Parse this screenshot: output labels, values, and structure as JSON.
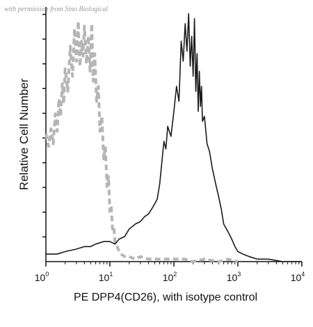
{
  "watermark": "with permission from Sino Biological",
  "chart_data": {
    "type": "line",
    "title": "",
    "xlabel": "PE DPP4(CD26), with isotype control",
    "ylabel": "Relative Cell Number",
    "x_scale": "log",
    "xlim": [
      1,
      10000
    ],
    "ylim": [
      0,
      100
    ],
    "x_ticks": [
      {
        "base": "10",
        "exp": "0",
        "value": 1
      },
      {
        "base": "10",
        "exp": "1",
        "value": 10
      },
      {
        "base": "10",
        "exp": "2",
        "value": 100
      },
      {
        "base": "10",
        "exp": "3",
        "value": 1000
      },
      {
        "base": "10",
        "exp": "4",
        "value": 10000
      }
    ],
    "y_ticks_labeled": false,
    "grid": false,
    "series": [
      {
        "role": "isotype control",
        "color": "#b5b5b5",
        "style": "dashed",
        "x": [
          1.0,
          1.1,
          1.2,
          1.3,
          1.4,
          1.5,
          1.6,
          1.7,
          1.8,
          1.9,
          2.0,
          2.2,
          2.4,
          2.6,
          2.8,
          3.0,
          3.2,
          3.4,
          3.6,
          3.8,
          4.0,
          4.3,
          4.6,
          4.9,
          5.2,
          5.5,
          5.8,
          6.2,
          6.6,
          7.0,
          7.5,
          8.0,
          8.5,
          9.0,
          9.5,
          10.0,
          10.5,
          11.0,
          11.5,
          12.0,
          13.0,
          14.0,
          15.0,
          17.0,
          20.0,
          25.0,
          30.0,
          40.0,
          50.0,
          70.0,
          100.0,
          150.0,
          200.0,
          300.0,
          500.0,
          700.0,
          1000.0
        ],
        "values": [
          51,
          46,
          53,
          47,
          59,
          52,
          65,
          58,
          71,
          63,
          77,
          68,
          86,
          74,
          93,
          80,
          96,
          78,
          88,
          82,
          94,
          79,
          90,
          76,
          95,
          72,
          83,
          64,
          70,
          52,
          58,
          41,
          46,
          30,
          34,
          20,
          22,
          13,
          14,
          8,
          6,
          4,
          3,
          2,
          2,
          1,
          2,
          1,
          1,
          1,
          1,
          1,
          0,
          1,
          0,
          1,
          0
        ]
      },
      {
        "role": "PE DPP4(CD26)",
        "color": "#1a1a1a",
        "style": "solid",
        "x": [
          1.0,
          1.5,
          2.0,
          3.0,
          4.0,
          5.0,
          6.0,
          8.0,
          10.0,
          12.0,
          14.0,
          17.0,
          20.0,
          25.0,
          30.0,
          35.0,
          40.0,
          45.0,
          50.0,
          55.0,
          60.0,
          65.0,
          70.0,
          75.0,
          80.0,
          90.0,
          100.0,
          110.0,
          120.0,
          130.0,
          140.0,
          150.0,
          160.0,
          170.0,
          180.0,
          190.0,
          200.0,
          210.0,
          220.0,
          230.0,
          240.0,
          250.0,
          260.0,
          270.0,
          280.0,
          300.0,
          330.0,
          360.0,
          400.0,
          450.0,
          500.0,
          550.0,
          600.0,
          700.0,
          800.0,
          900.0,
          1000.0,
          1200.0,
          1500.0,
          2000.0,
          3000.0,
          5000.0,
          10000.0
        ],
        "values": [
          3,
          3,
          4,
          5,
          6,
          6,
          7,
          8,
          8,
          7,
          9,
          10,
          13,
          15,
          16,
          18,
          19,
          21,
          23,
          25,
          31,
          40,
          48,
          45,
          54,
          50,
          60,
          70,
          64,
          88,
          80,
          95,
          84,
          99,
          78,
          90,
          74,
          97,
          68,
          83,
          60,
          76,
          62,
          70,
          56,
          58,
          47,
          44,
          37,
          31,
          26,
          21,
          15,
          12,
          9,
          6,
          4,
          3,
          2,
          1,
          1,
          0,
          0
        ]
      }
    ]
  }
}
